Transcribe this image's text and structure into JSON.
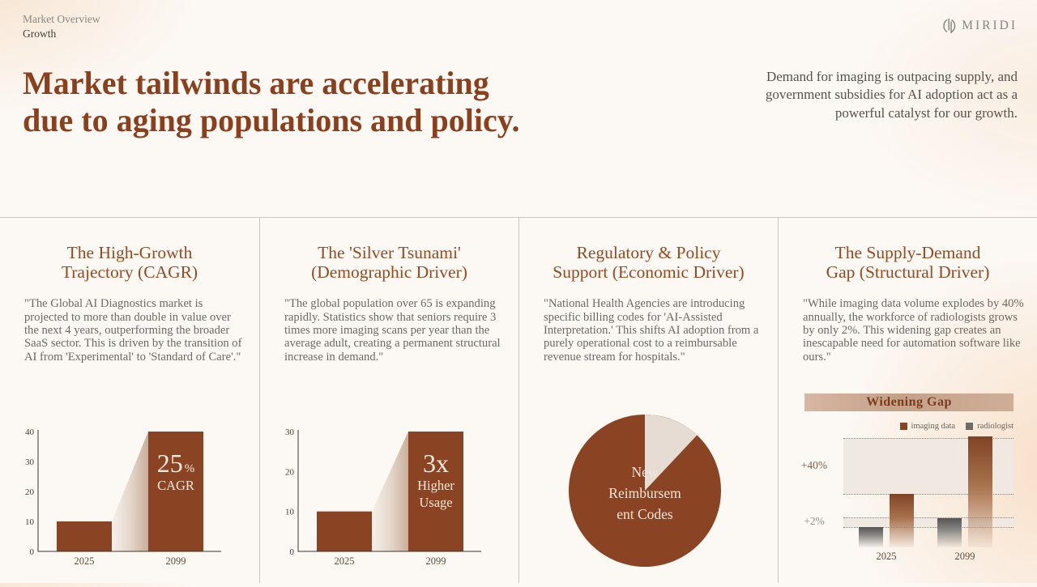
{
  "header": {
    "breadcrumb": {
      "section": "Market Overview",
      "page": "Growth"
    },
    "logo_text": "MIRIDI",
    "title_lines": [
      "Market tailwinds are accelerating",
      "due to aging populations and policy."
    ],
    "intro": "Demand for imaging is outpacing supply, and government subsidies for AI adoption act as a powerful catalyst for our growth."
  },
  "columns": [
    {
      "title_line1": "The High-Growth",
      "title_line2": "Trajectory (CAGR)",
      "body": "\"The Global AI Diagnostics market is projected to more than double in value over the next 4 years, outperforming the broader SaaS sector. This is driven by the transition of AI from 'Experimental' to 'Standard of Care'.\""
    },
    {
      "title_line1": "The 'Silver Tsunami'",
      "title_line2": "(Demographic Driver)",
      "body": "\"The global population over 65 is expanding rapidly. Statistics show that seniors require 3 times more imaging scans per year than the average adult, creating a permanent structural increase in demand.\""
    },
    {
      "title_line1": "Regulatory & Policy",
      "title_line2": "Support (Economic Driver)",
      "body": "\"National Health Agencies are introducing specific billing codes for 'AI-Assisted Interpretation.' This shifts AI adoption from a purely operational cost to a reimbursable revenue stream for hospitals.\""
    },
    {
      "title_line1": "The Supply-Demand",
      "title_line2": "Gap (Structural Driver)",
      "body": "\"While imaging data volume explodes by 40% annually, the workforce of radiologists grows by only 2%. This widening gap creates an inescapable need for automation software like ours.\""
    }
  ],
  "chart_data": [
    {
      "type": "bar",
      "title": "The High-Growth Trajectory (CAGR)",
      "categories": [
        "2025",
        "2099"
      ],
      "values": [
        10,
        40
      ],
      "yticks": [
        0,
        10,
        20,
        30,
        40
      ],
      "ylim": [
        0,
        40
      ],
      "xlabel": "",
      "ylabel": "",
      "bar_color": "#8b4423",
      "annotation": {
        "headline": "25",
        "headline_suffix": "%",
        "sub": [
          "CAGR"
        ]
      }
    },
    {
      "type": "bar",
      "title": "The 'Silver Tsunami' (Demographic Driver)",
      "categories": [
        "2025",
        "2099"
      ],
      "values": [
        10,
        30
      ],
      "yticks": [
        0,
        10,
        20,
        30
      ],
      "ylim": [
        0,
        30
      ],
      "xlabel": "",
      "ylabel": "",
      "bar_color": "#8b4423",
      "annotation": {
        "headline": "3x",
        "sub": [
          "Higher",
          "Usage"
        ]
      }
    },
    {
      "type": "pie",
      "title": "Regulatory & Policy Support (Economic Driver)",
      "slices": [
        {
          "label": "New Reimbursement Codes",
          "value": 88,
          "color": "#8b4423"
        },
        {
          "label": "",
          "value": 12,
          "color": "#e7dcd3"
        }
      ],
      "label_lines": [
        "New",
        "Reimbursem",
        "ent Codes"
      ]
    },
    {
      "type": "bar",
      "title": "Widening Gap",
      "categories": [
        "2025",
        "2099"
      ],
      "series": [
        {
          "name": "imaging data",
          "color": "#8b4423",
          "values": [
            47,
            98
          ]
        },
        {
          "name": "radiologist",
          "color": "#6e6a66",
          "values": [
            18,
            26
          ]
        }
      ],
      "ylabels": [
        "+40%",
        "+2%"
      ],
      "gridlines_pct": [
        3.6,
        52.9,
        73.6,
        82.1
      ],
      "legend_position": "top-right"
    }
  ],
  "colors": {
    "accent_brown": "#8b4423",
    "heading": "#8a3f1d",
    "background": "#fcf8f4",
    "divider": "#cdc7c1",
    "pie_light": "#e7dcd3",
    "gray_series": "#6e6a66"
  }
}
